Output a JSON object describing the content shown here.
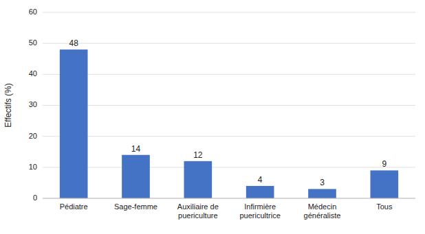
{
  "chart_data": {
    "type": "bar",
    "categories": [
      "Pédiatre",
      "Sage-femme",
      "Auxiliaire de\npuericulture",
      "Infirmière\npuericultrice",
      "Médecin\ngénéraliste",
      "Tous"
    ],
    "values": [
      48,
      14,
      12,
      4,
      3,
      9
    ],
    "color": "#4472c4",
    "ylabel": "Effectifs (%)",
    "ylim": [
      0,
      60
    ],
    "yticks": [
      0,
      10,
      20,
      30,
      40,
      50,
      60
    ],
    "grid": true,
    "data_labels": true
  }
}
